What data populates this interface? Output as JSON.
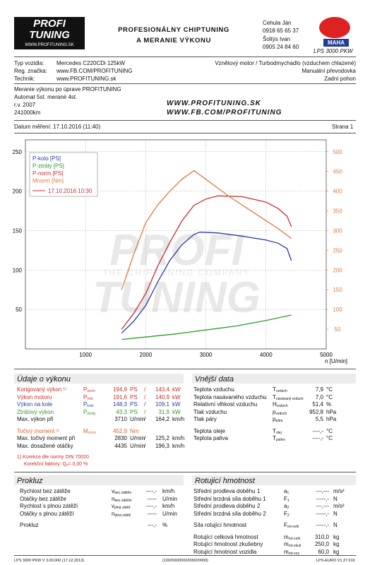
{
  "header": {
    "logo_top": "PROFI",
    "logo_bottom": "TUNING",
    "logo_url": "WWW.PROFITUNING.SK",
    "banner": [
      "PROFESIONÁLNY CHIPTUNING",
      "A MERANIE VÝKONU"
    ],
    "contacts": [
      "Cehula Ján",
      "0918 65 65 37",
      "Šoltýs Ivan",
      "0905 24 84 60"
    ],
    "brand": "MAHA",
    "model": "LPS 3000 PKW"
  },
  "vehicle": {
    "rows": [
      [
        "Typ vozidla:",
        "Mercedes C220CDi 125kW"
      ],
      [
        "Reg. značka:",
        "www.FB.COM/PROFITUNING"
      ],
      [
        "Technik:",
        "www.PROFITUNING.sk"
      ]
    ],
    "right": [
      "Vznětový motor / Turbodmychadlo (vzduchem chlazené)",
      "Manuální převodovka",
      "Zadní pohon"
    ]
  },
  "notes": {
    "lines": [
      "Meranie výkonu po úprave PROFITUNING",
      "Automat 5st. merané 4st.",
      "r.v. 2007",
      "241000km"
    ],
    "web": [
      "WWW.PROFITUNING.SK",
      "WWW.FB.COM/PROFITUNING"
    ]
  },
  "date_line": {
    "date": "Datum měření: 17.10.2016 (11:40)",
    "page": "Strana 1"
  },
  "chart_data": {
    "type": "line",
    "x_label": "n [U/min]",
    "xlim": [
      0,
      5000
    ],
    "xticks": [
      1000,
      2000,
      3000,
      4000,
      5000
    ],
    "ylim": [
      0,
      265
    ],
    "yticks": [
      50,
      100,
      150,
      200,
      250
    ],
    "y2lim": [
      0,
      530
    ],
    "y2ticks": [
      50,
      100,
      150,
      200,
      250,
      300,
      350,
      400,
      450,
      500
    ],
    "grid": true,
    "legend_date": "17.10.2016 10:30",
    "watermark": [
      "PROFI",
      "THE CHIPTUNING COMPANY",
      "TUNING"
    ],
    "series": [
      {
        "name": "P-kolo [PS]",
        "color": "#2a3aa8",
        "x": [
          1600,
          1800,
          2000,
          2200,
          2400,
          2600,
          2800,
          2900,
          3200,
          3600,
          4000,
          4200,
          4350,
          4420
        ],
        "values": [
          20,
          35,
          55,
          85,
          112,
          132,
          145,
          148,
          147,
          143,
          138,
          134,
          127,
          112
        ]
      },
      {
        "name": "P-ztráty [PS]",
        "color": "#2c9a2c",
        "x": [
          1600,
          2000,
          2500,
          3000,
          3500,
          4000,
          4420
        ],
        "values": [
          12,
          15,
          19,
          24,
          29,
          36,
          43
        ]
      },
      {
        "name": "P-norm [PS]",
        "color": "#cc2b2b",
        "x": [
          1600,
          1800,
          2000,
          2200,
          2400,
          2600,
          2800,
          3000,
          3200,
          3600,
          4000,
          4200,
          4350,
          4420
        ],
        "values": [
          25,
          45,
          70,
          105,
          135,
          162,
          182,
          190,
          194,
          193,
          186,
          178,
          168,
          155
        ]
      },
      {
        "name": "Mnorm [Nm]",
        "color": "#e07a3a",
        "axis": "y2",
        "x": [
          1600,
          1800,
          2000,
          2200,
          2400,
          2600,
          2800,
          3000,
          3400,
          3800,
          4200,
          4420
        ],
        "values": [
          150,
          240,
          320,
          365,
          400,
          430,
          452,
          430,
          385,
          345,
          305,
          280
        ]
      }
    ]
  },
  "power": {
    "title": "Údaje o výkonu",
    "groups": [
      [
        {
          "label": "Korigovaný výkon ¹⁾",
          "sym": "P",
          "sub": "norm",
          "value": "194,9",
          "unit": "PS",
          "sep": "/",
          "value2": "143,4",
          "unit2": "kW",
          "color": "#cc2b2b"
        },
        {
          "label": "Výkon motoru",
          "sym": "P",
          "sub": "mot",
          "value": "191,6",
          "unit": "PS",
          "sep": "/",
          "value2": "140,9",
          "unit2": "kW",
          "color": "#cc2b2b"
        },
        {
          "label": "Výkon na kole",
          "sym": "P",
          "sub": "kolo",
          "value": "148,3",
          "unit": "PS",
          "sep": "/",
          "value2": "109,1",
          "unit2": "kW",
          "color": "#2a3aa8"
        },
        {
          "label": "Ztrátový výkon",
          "sym": "P",
          "sub": "ztráty",
          "value": "43,3",
          "unit": "PS",
          "sep": "/",
          "value2": "31,9",
          "unit2": "kW",
          "color": "#2c9a2c"
        },
        {
          "label": "Max. výkon při",
          "value": "3710",
          "unit": "U/min",
          "sep": "/",
          "value2": "164,2",
          "unit2": "km/h"
        }
      ],
      [
        {
          "label": "Točivý moment ¹⁾",
          "sym": "M",
          "sub": "norm",
          "value": "452,9",
          "unit": "Nm",
          "color": "#e0602a"
        },
        {
          "label": "Max. točivý moment při",
          "value": "2830",
          "unit": "U/min",
          "sep": "/",
          "value2": "125,2",
          "unit2": "km/h"
        },
        {
          "label": "Max. dosažené otáčky",
          "value": "4435",
          "unit": "U/min",
          "sep": "/",
          "value2": "196,3",
          "unit2": "km/h"
        }
      ]
    ],
    "notes": [
      "1) Korekce dle normy DIN 70020",
      "Korekční faktory: Q",
      "v",
      "= 0,00 %"
    ]
  },
  "ambient": {
    "title": "Vnější data",
    "groups": [
      [
        {
          "label": "Teplota vzduchu",
          "sym": "T",
          "sub": "vzduch",
          "value": "7,9",
          "unit": "°C"
        },
        {
          "label": "Teplota nasávaného vzduchu",
          "sym": "T",
          "sub": "nasávaný vzduch",
          "value": "7,0",
          "unit": "°C"
        },
        {
          "label": "Relativní vlhkost vzduchu",
          "sym": "H",
          "sub": "vzduch",
          "value": "51,4",
          "unit": "%"
        },
        {
          "label": "Tlak vzduchu",
          "sym": "p",
          "sub": "vzduch",
          "value": "952,8",
          "unit": "hPa"
        },
        {
          "label": "Tlak páry",
          "sym": "p",
          "sub": "pára",
          "value": "5,5",
          "unit": "hPa"
        }
      ],
      [
        {
          "label": "Teplota oleje",
          "sym": "T",
          "sub": "olej",
          "value": "----,-",
          "unit": "°C"
        },
        {
          "label": "Teplota paliva",
          "sym": "T",
          "sub": "palivo",
          "value": "----,-",
          "unit": "°C"
        }
      ]
    ]
  },
  "slip": {
    "title": "Prokluz",
    "groups": [
      [
        {
          "label": "Rychlost bez zátěže",
          "sym": "v",
          "sub": "bez zátěže",
          "value": "----,-",
          "unit": "km/h"
        },
        {
          "label": "Otáčky bez zátěže",
          "sym": "n",
          "sub": "bez zátěže",
          "value": "-----",
          "unit": "U/min"
        },
        {
          "label": "Rychlost s plnou zátěží",
          "sym": "v",
          "sub": "plná zátěž",
          "value": "----,-",
          "unit": "km/h"
        },
        {
          "label": "Otáčky s plnou zátěží",
          "sym": "n",
          "sub": "plná zátěž",
          "value": "-----",
          "unit": "U/min"
        }
      ],
      [
        {
          "label": "Prokluz",
          "value": "---,-",
          "unit": "%"
        }
      ]
    ]
  },
  "rotating": {
    "title": "Rotujicí hmotnost",
    "groups": [
      [
        {
          "label": "Střední prodleva doběhu 1",
          "sym": "a",
          "sub": "1",
          "value": "---,---",
          "unit": "m/s²"
        },
        {
          "label": "Střední brzdná síla doběhu 1",
          "sym": "F",
          "sub": "1",
          "value": "-----,-",
          "unit": "N"
        },
        {
          "label": "Střední prodleva doběhu 2",
          "sym": "a",
          "sub": "2",
          "value": "---,---",
          "unit": "m/s²"
        },
        {
          "label": "Střední brzdná síla doběhu 2",
          "sym": "F",
          "sub": "2",
          "value": "-----,-",
          "unit": "N"
        }
      ],
      [
        {
          "label": "Síla rotující hmotnost",
          "sym": "F",
          "sub": "rot-celk",
          "value": "-----,-",
          "unit": "N"
        }
      ],
      [
        {
          "label": "Rotující celková hmotnost",
          "sym": "m",
          "sub": "rot-celk",
          "value": "310,0",
          "unit": "kg"
        },
        {
          "label": "Rotující hmotnost zkušebny",
          "sym": "m",
          "sub": "rot-zkuš",
          "value": "250,0",
          "unit": "kg"
        },
        {
          "label": "Rotující hmotnost vozidla",
          "sym": "m",
          "sub": "rot-voz",
          "value": "60,0",
          "unit": "kg"
        }
      ]
    ]
  },
  "footer": {
    "left": "LPS 3000 PKW V 3.00.000 (17.12.2013)",
    "center": "(100/000/0000/0000/0000)",
    "right": "LPS-EURO V1.37.010"
  }
}
